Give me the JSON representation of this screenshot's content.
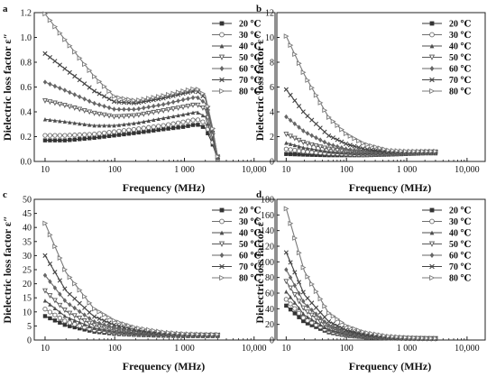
{
  "chart_data": [
    {
      "panel": "a",
      "type": "line",
      "xlabel": "Frequency (MHz)",
      "ylabel": "Dielectric loss factor ε″",
      "xscale": "log",
      "xlim": [
        7,
        20000
      ],
      "ylim": [
        0.0,
        1.2
      ],
      "xticks": [
        "10",
        "100",
        "1 000",
        "10,000"
      ],
      "yticks": [
        "0.0",
        "0.2",
        "0.4",
        "0.6",
        "0.8",
        "1.0",
        "1.2"
      ],
      "legend_position": "top-right",
      "x": [
        10,
        20,
        50,
        100,
        200,
        500,
        1000,
        1500,
        2000,
        2500,
        3000
      ],
      "series": [
        {
          "name": "20 ℃",
          "marker": "square-filled",
          "values": [
            0.17,
            0.17,
            0.19,
            0.21,
            0.23,
            0.26,
            0.28,
            0.3,
            0.27,
            0.15,
            0.02
          ]
        },
        {
          "name": "30 ℃",
          "marker": "circle-open",
          "values": [
            0.21,
            0.21,
            0.22,
            0.24,
            0.26,
            0.29,
            0.32,
            0.34,
            0.31,
            0.17,
            0.02
          ]
        },
        {
          "name": "40 ℃",
          "marker": "triangle-filled",
          "values": [
            0.34,
            0.32,
            0.29,
            0.29,
            0.31,
            0.35,
            0.38,
            0.4,
            0.36,
            0.2,
            0.03
          ]
        },
        {
          "name": "50 ℃",
          "marker": "triangle-down-open",
          "values": [
            0.49,
            0.45,
            0.39,
            0.36,
            0.37,
            0.41,
            0.44,
            0.46,
            0.42,
            0.23,
            0.03
          ]
        },
        {
          "name": "60 ℃",
          "marker": "diamond-filled",
          "values": [
            0.64,
            0.57,
            0.47,
            0.42,
            0.42,
            0.46,
            0.5,
            0.52,
            0.47,
            0.26,
            0.04
          ]
        },
        {
          "name": "70 ℃",
          "marker": "x",
          "values": [
            0.87,
            0.74,
            0.57,
            0.48,
            0.47,
            0.51,
            0.55,
            0.57,
            0.51,
            0.28,
            0.04
          ]
        },
        {
          "name": "80 ℃",
          "marker": "triangle-right-open",
          "values": [
            1.19,
            0.97,
            0.69,
            0.52,
            0.49,
            0.53,
            0.57,
            0.59,
            0.53,
            0.29,
            0.04
          ]
        }
      ]
    },
    {
      "panel": "b",
      "type": "line",
      "xlabel": "Frequency (MHz)",
      "ylabel": "Dielectric loss factor ε″",
      "xscale": "log",
      "xlim": [
        7,
        20000
      ],
      "ylim": [
        0,
        12
      ],
      "xticks": [
        "10",
        "100",
        "1 000",
        "10,000"
      ],
      "yticks": [
        "0",
        "2",
        "4",
        "6",
        "8",
        "10",
        "12"
      ],
      "legend_position": "top-right",
      "x": [
        10,
        20,
        50,
        100,
        200,
        500,
        1000,
        2000,
        3000
      ],
      "series": [
        {
          "name": "20 ℃",
          "marker": "square-filled",
          "values": [
            0.6,
            0.55,
            0.5,
            0.5,
            0.5,
            0.55,
            0.6,
            0.65,
            0.65
          ]
        },
        {
          "name": "30 ℃",
          "marker": "circle-open",
          "values": [
            1.0,
            0.8,
            0.65,
            0.6,
            0.55,
            0.6,
            0.65,
            0.7,
            0.7
          ]
        },
        {
          "name": "40 ℃",
          "marker": "triangle-filled",
          "values": [
            1.5,
            1.1,
            0.8,
            0.7,
            0.62,
            0.62,
            0.68,
            0.72,
            0.72
          ]
        },
        {
          "name": "50 ℃",
          "marker": "triangle-down-open",
          "values": [
            2.2,
            1.5,
            1.0,
            0.8,
            0.7,
            0.66,
            0.7,
            0.75,
            0.75
          ]
        },
        {
          "name": "60 ℃",
          "marker": "diamond-filled",
          "values": [
            3.6,
            2.4,
            1.4,
            1.0,
            0.8,
            0.7,
            0.73,
            0.78,
            0.78
          ]
        },
        {
          "name": "70 ℃",
          "marker": "x",
          "values": [
            5.8,
            3.9,
            2.1,
            1.4,
            1.0,
            0.78,
            0.76,
            0.8,
            0.8
          ]
        },
        {
          "name": "80 ℃",
          "marker": "triangle-right-open",
          "values": [
            10.1,
            7.0,
            3.6,
            2.2,
            1.4,
            0.9,
            0.82,
            0.82,
            0.82
          ]
        }
      ]
    },
    {
      "panel": "c",
      "type": "line",
      "xlabel": "Frequency (MHz)",
      "ylabel": "Dielectric loss factor ε″",
      "xscale": "log",
      "xlim": [
        7,
        20000
      ],
      "ylim": [
        0,
        50
      ],
      "xticks": [
        "10",
        "100",
        "1 000",
        "10,000"
      ],
      "yticks": [
        "0",
        "5",
        "10",
        "15",
        "20",
        "25",
        "30",
        "35",
        "40",
        "45",
        "50"
      ],
      "legend_position": "top-right",
      "x": [
        10,
        20,
        50,
        100,
        200,
        500,
        1000,
        2000,
        3000
      ],
      "series": [
        {
          "name": "20 ℃",
          "marker": "square-filled",
          "values": [
            8.5,
            5.2,
            3.0,
            2.2,
            1.8,
            1.5,
            1.4,
            1.4,
            1.4
          ]
        },
        {
          "name": "30 ℃",
          "marker": "circle-open",
          "values": [
            11.0,
            6.5,
            3.6,
            2.6,
            2.0,
            1.6,
            1.5,
            1.5,
            1.5
          ]
        },
        {
          "name": "40 ℃",
          "marker": "triangle-filled",
          "values": [
            14.0,
            8.2,
            4.3,
            3.0,
            2.2,
            1.7,
            1.6,
            1.6,
            1.6
          ]
        },
        {
          "name": "50 ℃",
          "marker": "triangle-down-open",
          "values": [
            17.5,
            10.2,
            5.2,
            3.5,
            2.5,
            1.9,
            1.7,
            1.7,
            1.7
          ]
        },
        {
          "name": "60 ℃",
          "marker": "diamond-filled",
          "values": [
            23.0,
            13.5,
            6.6,
            4.3,
            3.0,
            2.1,
            1.9,
            1.8,
            1.8
          ]
        },
        {
          "name": "70 ℃",
          "marker": "x",
          "values": [
            30.0,
            17.5,
            8.4,
            5.3,
            3.6,
            2.4,
            2.0,
            1.9,
            1.9
          ]
        },
        {
          "name": "80 ℃",
          "marker": "triangle-right-open",
          "values": [
            41.5,
            24.0,
            11.2,
            6.8,
            4.4,
            2.8,
            2.2,
            2.0,
            2.0
          ]
        }
      ]
    },
    {
      "panel": "d",
      "type": "line",
      "xlabel": "Frequency (MHz)",
      "ylabel": "Dielectric loss factor ε″",
      "xscale": "log",
      "xlim": [
        7,
        20000
      ],
      "ylim": [
        0,
        180
      ],
      "xticks": [
        "10",
        "100",
        "1 000",
        "10,000"
      ],
      "yticks": [
        "0",
        "20",
        "40",
        "60",
        "80",
        "100",
        "120",
        "140",
        "160",
        "180"
      ],
      "legend_position": "top-right",
      "x": [
        10,
        20,
        50,
        100,
        200,
        500,
        1000,
        2000,
        3000
      ],
      "series": [
        {
          "name": "20 ℃",
          "marker": "square-filled",
          "values": [
            44,
            23,
            10,
            5.5,
            3.5,
            2.2,
            1.8,
            1.6,
            1.5
          ]
        },
        {
          "name": "30 ℃",
          "marker": "circle-open",
          "values": [
            52,
            27,
            11.5,
            6.3,
            3.9,
            2.4,
            1.9,
            1.7,
            1.6
          ]
        },
        {
          "name": "40 ℃",
          "marker": "triangle-filled",
          "values": [
            62,
            32,
            13.5,
            7.3,
            4.4,
            2.6,
            2.0,
            1.8,
            1.7
          ]
        },
        {
          "name": "50 ℃",
          "marker": "triangle-down-open",
          "values": [
            75,
            39,
            16,
            8.6,
            5.0,
            2.9,
            2.2,
            1.9,
            1.8
          ]
        },
        {
          "name": "60 ℃",
          "marker": "diamond-filled",
          "values": [
            90,
            47,
            19,
            10,
            5.8,
            3.2,
            2.4,
            2.0,
            1.9
          ]
        },
        {
          "name": "70 ℃",
          "marker": "x",
          "values": [
            112,
            58,
            24,
            12.5,
            7.0,
            3.7,
            2.6,
            2.1,
            2.0
          ]
        },
        {
          "name": "80 ℃",
          "marker": "triangle-right-open",
          "values": [
            168,
            88,
            35,
            18,
            9.8,
            4.8,
            3.2,
            2.4,
            2.2
          ]
        }
      ]
    }
  ]
}
